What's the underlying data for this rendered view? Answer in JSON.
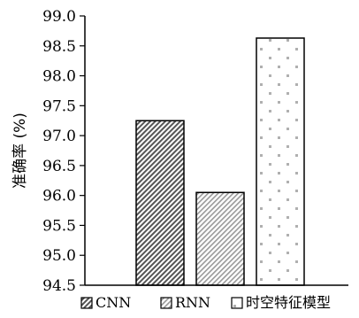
{
  "chart_data": {
    "type": "bar",
    "categories": [
      "CNN",
      "RNN",
      "时空特征模型"
    ],
    "values": [
      97.25,
      96.05,
      98.63
    ],
    "ylabel": "准确率 (%)",
    "ylim": [
      94.5,
      99.0
    ],
    "yticks": [
      "94.5",
      "95.0",
      "95.5",
      "96.0",
      "96.5",
      "97.0",
      "97.5",
      "98.0",
      "98.5",
      "99.0"
    ],
    "grid": false,
    "legend": {
      "placement": "bottom",
      "entries": [
        "CNN",
        "RNN",
        "时空特征模型"
      ]
    }
  }
}
